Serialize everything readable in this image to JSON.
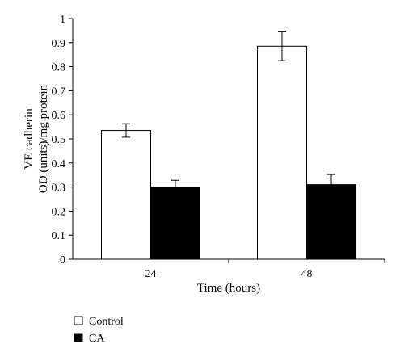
{
  "chart_data": {
    "type": "bar",
    "categories": [
      "24",
      "48"
    ],
    "series": [
      {
        "name": "Control",
        "values": [
          0.535,
          0.885
        ],
        "errors": [
          0.028,
          0.06
        ],
        "color": "#ffffff"
      },
      {
        "name": "CA",
        "values": [
          0.3,
          0.31
        ],
        "errors": [
          0.028,
          0.042
        ],
        "color": "#000000"
      }
    ],
    "xlabel": "Time (hours)",
    "ylabel": [
      "VE cadherin",
      "OD (units)/mg protein"
    ],
    "ylim": [
      0,
      1
    ],
    "yticks": [
      "0",
      "0.1",
      "0.2",
      "0.3",
      "0.4",
      "0.5",
      "0.6",
      "0.7",
      "0.8",
      "0.9",
      "1"
    ],
    "grid": false,
    "legend_position": "bottom-left"
  }
}
